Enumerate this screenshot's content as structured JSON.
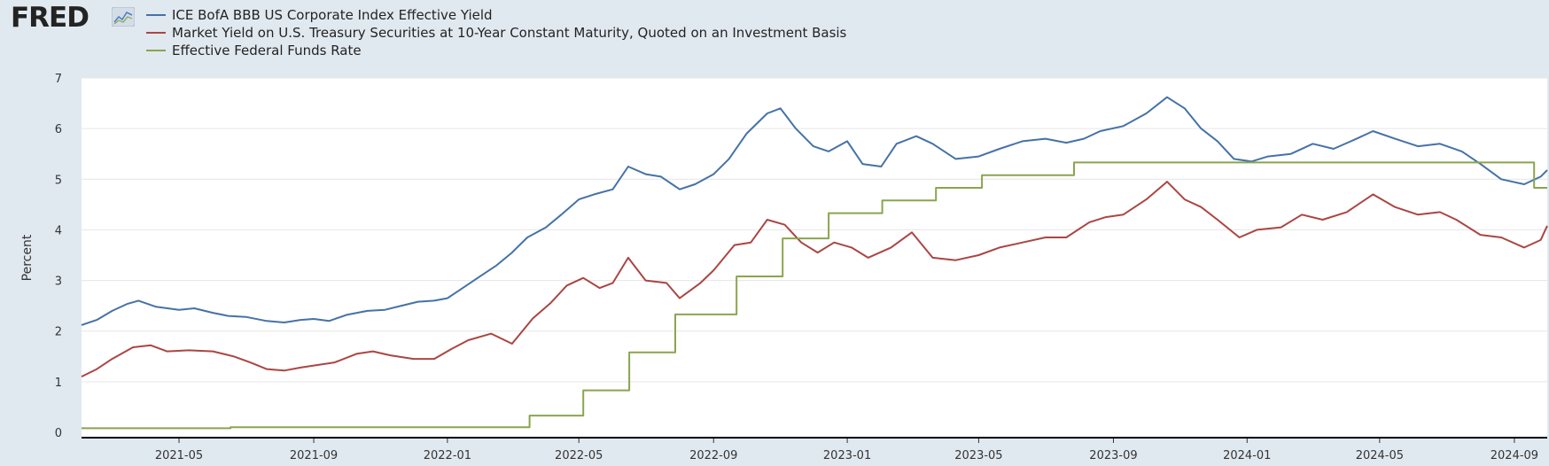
{
  "logo": {
    "text": "FRED",
    "badge_icon": "line-graph-icon"
  },
  "chart_data": {
    "type": "line",
    "ylabel": "Percent",
    "ylim": [
      0,
      7
    ],
    "yticks": [
      0,
      1,
      2,
      3,
      4,
      5,
      6,
      7
    ],
    "xlim": [
      "2021-02-01",
      "2024-10-01"
    ],
    "xticks": [
      "2021-05",
      "2021-09",
      "2022-01",
      "2022-05",
      "2022-09",
      "2023-01",
      "2023-05",
      "2023-09",
      "2024-01",
      "2024-05",
      "2024-09"
    ],
    "grid": "horizontal",
    "legend_position": "top-left",
    "series": [
      {
        "name": "ICE BofA BBB US Corporate Index Effective Yield",
        "color": "#4572a7",
        "points": [
          [
            "2021-02-01",
            2.12
          ],
          [
            "2021-02-15",
            2.22
          ],
          [
            "2021-03-01",
            2.4
          ],
          [
            "2021-03-15",
            2.54
          ],
          [
            "2021-03-25",
            2.6
          ],
          [
            "2021-04-10",
            2.48
          ],
          [
            "2021-05-01",
            2.42
          ],
          [
            "2021-05-15",
            2.45
          ],
          [
            "2021-06-01",
            2.36
          ],
          [
            "2021-06-15",
            2.3
          ],
          [
            "2021-07-01",
            2.28
          ],
          [
            "2021-07-20",
            2.2
          ],
          [
            "2021-08-05",
            2.17
          ],
          [
            "2021-08-20",
            2.22
          ],
          [
            "2021-09-01",
            2.24
          ],
          [
            "2021-09-15",
            2.2
          ],
          [
            "2021-10-01",
            2.32
          ],
          [
            "2021-10-20",
            2.4
          ],
          [
            "2021-11-05",
            2.42
          ],
          [
            "2021-11-20",
            2.5
          ],
          [
            "2021-12-05",
            2.58
          ],
          [
            "2021-12-20",
            2.6
          ],
          [
            "2022-01-01",
            2.65
          ],
          [
            "2022-01-15",
            2.85
          ],
          [
            "2022-02-01",
            3.1
          ],
          [
            "2022-02-15",
            3.3
          ],
          [
            "2022-03-01",
            3.55
          ],
          [
            "2022-03-15",
            3.85
          ],
          [
            "2022-04-01",
            4.05
          ],
          [
            "2022-04-15",
            4.3
          ],
          [
            "2022-05-01",
            4.6
          ],
          [
            "2022-05-15",
            4.7
          ],
          [
            "2022-06-01",
            4.8
          ],
          [
            "2022-06-15",
            5.25
          ],
          [
            "2022-07-01",
            5.1
          ],
          [
            "2022-07-15",
            5.05
          ],
          [
            "2022-08-01",
            4.8
          ],
          [
            "2022-08-15",
            4.9
          ],
          [
            "2022-09-01",
            5.1
          ],
          [
            "2022-09-15",
            5.4
          ],
          [
            "2022-10-01",
            5.9
          ],
          [
            "2022-10-20",
            6.3
          ],
          [
            "2022-11-01",
            6.4
          ],
          [
            "2022-11-15",
            6.0
          ],
          [
            "2022-12-01",
            5.65
          ],
          [
            "2022-12-15",
            5.55
          ],
          [
            "2023-01-01",
            5.75
          ],
          [
            "2023-01-15",
            5.3
          ],
          [
            "2023-02-01",
            5.25
          ],
          [
            "2023-02-15",
            5.7
          ],
          [
            "2023-03-05",
            5.85
          ],
          [
            "2023-03-20",
            5.7
          ],
          [
            "2023-04-10",
            5.4
          ],
          [
            "2023-05-01",
            5.45
          ],
          [
            "2023-05-20",
            5.6
          ],
          [
            "2023-06-10",
            5.75
          ],
          [
            "2023-07-01",
            5.8
          ],
          [
            "2023-07-20",
            5.72
          ],
          [
            "2023-08-05",
            5.8
          ],
          [
            "2023-08-20",
            5.95
          ],
          [
            "2023-09-10",
            6.05
          ],
          [
            "2023-10-01",
            6.3
          ],
          [
            "2023-10-20",
            6.62
          ],
          [
            "2023-11-05",
            6.4
          ],
          [
            "2023-11-20",
            6.0
          ],
          [
            "2023-12-05",
            5.75
          ],
          [
            "2023-12-20",
            5.4
          ],
          [
            "2024-01-05",
            5.35
          ],
          [
            "2024-01-20",
            5.45
          ],
          [
            "2024-02-10",
            5.5
          ],
          [
            "2024-03-01",
            5.7
          ],
          [
            "2024-03-20",
            5.6
          ],
          [
            "2024-04-10",
            5.8
          ],
          [
            "2024-04-25",
            5.95
          ],
          [
            "2024-05-15",
            5.8
          ],
          [
            "2024-06-05",
            5.65
          ],
          [
            "2024-06-25",
            5.7
          ],
          [
            "2024-07-15",
            5.55
          ],
          [
            "2024-08-01",
            5.3
          ],
          [
            "2024-08-20",
            5.0
          ],
          [
            "2024-09-10",
            4.9
          ],
          [
            "2024-09-25",
            5.05
          ],
          [
            "2024-10-01",
            5.18
          ]
        ]
      },
      {
        "name": "Market Yield on U.S. Treasury Securities at 10-Year Constant Maturity, Quoted on an Investment Basis",
        "color": "#aa4643",
        "points": [
          [
            "2021-02-01",
            1.1
          ],
          [
            "2021-02-15",
            1.25
          ],
          [
            "2021-03-01",
            1.45
          ],
          [
            "2021-03-20",
            1.68
          ],
          [
            "2021-04-05",
            1.72
          ],
          [
            "2021-04-20",
            1.6
          ],
          [
            "2021-05-10",
            1.62
          ],
          [
            "2021-06-01",
            1.6
          ],
          [
            "2021-06-20",
            1.5
          ],
          [
            "2021-07-05",
            1.38
          ],
          [
            "2021-07-20",
            1.25
          ],
          [
            "2021-08-05",
            1.22
          ],
          [
            "2021-08-20",
            1.28
          ],
          [
            "2021-09-01",
            1.32
          ],
          [
            "2021-09-20",
            1.38
          ],
          [
            "2021-10-10",
            1.55
          ],
          [
            "2021-10-25",
            1.6
          ],
          [
            "2021-11-10",
            1.52
          ],
          [
            "2021-12-01",
            1.45
          ],
          [
            "2021-12-20",
            1.45
          ],
          [
            "2022-01-05",
            1.65
          ],
          [
            "2022-01-20",
            1.82
          ],
          [
            "2022-02-10",
            1.95
          ],
          [
            "2022-03-01",
            1.75
          ],
          [
            "2022-03-20",
            2.25
          ],
          [
            "2022-04-05",
            2.55
          ],
          [
            "2022-04-20",
            2.9
          ],
          [
            "2022-05-05",
            3.05
          ],
          [
            "2022-05-20",
            2.85
          ],
          [
            "2022-06-01",
            2.95
          ],
          [
            "2022-06-15",
            3.45
          ],
          [
            "2022-07-01",
            3.0
          ],
          [
            "2022-07-20",
            2.95
          ],
          [
            "2022-08-01",
            2.65
          ],
          [
            "2022-08-20",
            2.95
          ],
          [
            "2022-09-01",
            3.2
          ],
          [
            "2022-09-20",
            3.7
          ],
          [
            "2022-10-05",
            3.75
          ],
          [
            "2022-10-20",
            4.2
          ],
          [
            "2022-11-05",
            4.1
          ],
          [
            "2022-11-20",
            3.75
          ],
          [
            "2022-12-05",
            3.55
          ],
          [
            "2022-12-20",
            3.75
          ],
          [
            "2023-01-05",
            3.65
          ],
          [
            "2023-01-20",
            3.45
          ],
          [
            "2023-02-10",
            3.65
          ],
          [
            "2023-03-01",
            3.95
          ],
          [
            "2023-03-20",
            3.45
          ],
          [
            "2023-04-10",
            3.4
          ],
          [
            "2023-05-01",
            3.5
          ],
          [
            "2023-05-20",
            3.65
          ],
          [
            "2023-06-10",
            3.75
          ],
          [
            "2023-07-01",
            3.85
          ],
          [
            "2023-07-20",
            3.85
          ],
          [
            "2023-08-10",
            4.15
          ],
          [
            "2023-08-25",
            4.25
          ],
          [
            "2023-09-10",
            4.3
          ],
          [
            "2023-10-01",
            4.6
          ],
          [
            "2023-10-20",
            4.95
          ],
          [
            "2023-11-05",
            4.6
          ],
          [
            "2023-11-20",
            4.45
          ],
          [
            "2023-12-05",
            4.2
          ],
          [
            "2023-12-25",
            3.85
          ],
          [
            "2024-01-10",
            4.0
          ],
          [
            "2024-02-01",
            4.05
          ],
          [
            "2024-02-20",
            4.3
          ],
          [
            "2024-03-10",
            4.2
          ],
          [
            "2024-04-01",
            4.35
          ],
          [
            "2024-04-25",
            4.7
          ],
          [
            "2024-05-15",
            4.45
          ],
          [
            "2024-06-05",
            4.3
          ],
          [
            "2024-06-25",
            4.35
          ],
          [
            "2024-07-10",
            4.2
          ],
          [
            "2024-08-01",
            3.9
          ],
          [
            "2024-08-20",
            3.85
          ],
          [
            "2024-09-10",
            3.65
          ],
          [
            "2024-09-25",
            3.8
          ],
          [
            "2024-10-01",
            4.08
          ]
        ]
      },
      {
        "name": "Effective Federal Funds Rate",
        "color": "#89a54e",
        "points": [
          [
            "2021-02-01",
            0.08
          ],
          [
            "2021-06-17",
            0.08
          ],
          [
            "2021-06-17",
            0.1
          ],
          [
            "2022-03-17",
            0.1
          ],
          [
            "2022-03-17",
            0.33
          ],
          [
            "2022-05-05",
            0.33
          ],
          [
            "2022-05-05",
            0.83
          ],
          [
            "2022-06-16",
            0.83
          ],
          [
            "2022-06-16",
            1.58
          ],
          [
            "2022-07-28",
            1.58
          ],
          [
            "2022-07-28",
            2.33
          ],
          [
            "2022-09-22",
            2.33
          ],
          [
            "2022-09-22",
            3.08
          ],
          [
            "2022-11-03",
            3.08
          ],
          [
            "2022-11-03",
            3.83
          ],
          [
            "2022-12-15",
            3.83
          ],
          [
            "2022-12-15",
            4.33
          ],
          [
            "2023-02-02",
            4.33
          ],
          [
            "2023-02-02",
            4.58
          ],
          [
            "2023-03-23",
            4.58
          ],
          [
            "2023-03-23",
            4.83
          ],
          [
            "2023-05-04",
            4.83
          ],
          [
            "2023-05-04",
            5.08
          ],
          [
            "2023-07-27",
            5.08
          ],
          [
            "2023-07-27",
            5.33
          ],
          [
            "2024-09-19",
            5.33
          ],
          [
            "2024-09-19",
            4.83
          ],
          [
            "2024-10-01",
            4.83
          ]
        ]
      }
    ]
  }
}
